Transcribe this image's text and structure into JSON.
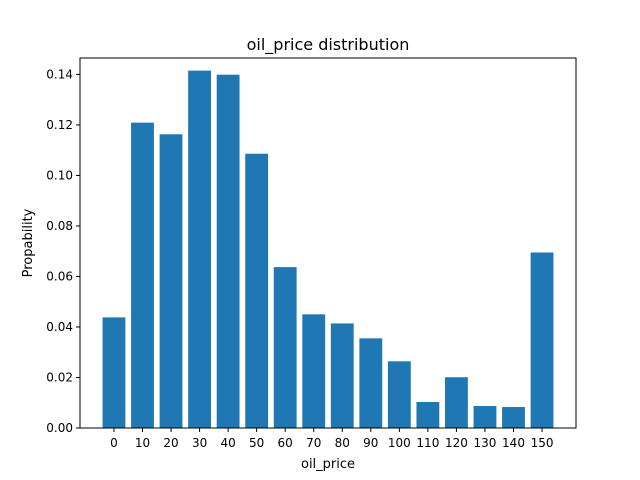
{
  "chart_data": {
    "type": "bar",
    "title": "oil_price distribution",
    "xlabel": "oil_price",
    "ylabel": "Propability",
    "categories": [
      "0",
      "10",
      "20",
      "30",
      "40",
      "50",
      "60",
      "70",
      "80",
      "90",
      "100",
      "110",
      "120",
      "130",
      "140",
      "150"
    ],
    "values": [
      0.0438,
      0.1209,
      0.1163,
      0.1415,
      0.1399,
      0.1086,
      0.0637,
      0.045,
      0.0414,
      0.0355,
      0.0264,
      0.0103,
      0.0201,
      0.0087,
      0.0083,
      0.0695
    ],
    "ylim": [
      0,
      0.1465
    ],
    "yticks": [
      "0.00",
      "0.02",
      "0.04",
      "0.06",
      "0.08",
      "0.10",
      "0.12",
      "0.14"
    ],
    "ytick_values": [
      0,
      0.02,
      0.04,
      0.06,
      0.08,
      0.1,
      0.12,
      0.14
    ],
    "grid": false,
    "bar_color": "#1f77b4"
  }
}
